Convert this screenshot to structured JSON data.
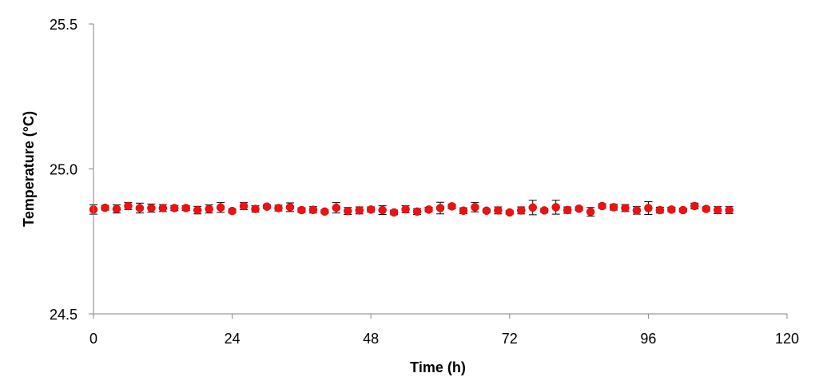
{
  "chart_data": {
    "type": "scatter",
    "title": "",
    "xlabel": "Time (h)",
    "ylabel": "Temperature (°C)",
    "xlim": [
      0,
      120
    ],
    "ylim": [
      24.5,
      25.5
    ],
    "x_ticks": [
      "0",
      "24",
      "48",
      "72",
      "96",
      "120"
    ],
    "x_tick_values": [
      0,
      24,
      48,
      72,
      96,
      120
    ],
    "y_ticks": [
      "24.5",
      "25.0",
      "25.5"
    ],
    "y_tick_values": [
      24.5,
      25.0,
      25.5
    ],
    "grid": false,
    "legend": "none",
    "marker_color": "#ee1111",
    "errorbar_color": "#000000",
    "axis_color": "#868686",
    "series": [
      {
        "x": [
          0,
          2,
          4,
          6,
          8,
          10,
          12,
          14,
          16,
          18,
          20,
          22,
          24,
          26,
          28,
          30,
          32,
          34,
          36,
          38,
          40,
          42,
          44,
          46,
          48,
          50,
          52,
          54,
          56,
          58,
          60,
          62,
          64,
          66,
          68,
          70,
          72,
          74,
          76,
          78,
          80,
          82,
          84,
          86,
          88,
          90,
          92,
          94,
          96,
          98,
          100,
          102,
          104,
          106,
          108,
          110
        ],
        "y": [
          24.86,
          24.866,
          24.862,
          24.872,
          24.865,
          24.865,
          24.865,
          24.865,
          24.865,
          24.858,
          24.862,
          24.867,
          24.855,
          24.872,
          24.862,
          24.87,
          24.865,
          24.868,
          24.858,
          24.859,
          24.853,
          24.866,
          24.855,
          24.857,
          24.86,
          24.858,
          24.85,
          24.861,
          24.853,
          24.86,
          24.865,
          24.871,
          24.856,
          24.868,
          24.856,
          24.857,
          24.85,
          24.857,
          24.867,
          24.857,
          24.868,
          24.858,
          24.863,
          24.852,
          24.872,
          24.868,
          24.865,
          24.857,
          24.865,
          24.858,
          24.86,
          24.858,
          24.872,
          24.862,
          24.858,
          24.858
        ],
        "error": [
          0.016,
          0.008,
          0.014,
          0.012,
          0.017,
          0.014,
          0.012,
          0.009,
          0.008,
          0.013,
          0.014,
          0.017,
          0.007,
          0.012,
          0.011,
          0.006,
          0.01,
          0.015,
          0.008,
          0.011,
          0.006,
          0.018,
          0.012,
          0.012,
          0.009,
          0.015,
          0.008,
          0.012,
          0.01,
          0.008,
          0.02,
          0.008,
          0.01,
          0.016,
          0.006,
          0.012,
          0.006,
          0.012,
          0.025,
          0.007,
          0.024,
          0.011,
          0.006,
          0.015,
          0.008,
          0.01,
          0.012,
          0.013,
          0.022,
          0.01,
          0.008,
          0.007,
          0.01,
          0.007,
          0.012,
          0.012
        ]
      }
    ]
  }
}
